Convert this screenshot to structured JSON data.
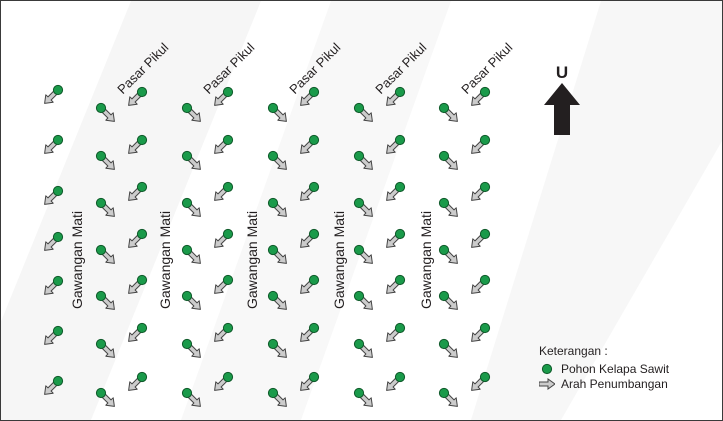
{
  "paths": {
    "pasar_pikul": [
      "Pasar Pikul",
      "Pasar Pikul",
      "Pasar Pikul",
      "Pasar Pikul",
      "Pasar Pikul"
    ],
    "gawangan_mati": [
      "Gawangan Mati",
      "Gawangan Mati",
      "Gawangan Mati",
      "Gawangan Mati",
      "Gawangan Mati"
    ]
  },
  "compass": {
    "label": "U"
  },
  "legend": {
    "title": "Keterangan :",
    "tree_label": "Pohon Kelapa Sawit",
    "arrow_label": "Arah Penumbangan"
  },
  "colors": {
    "tree": "#1a9a4a",
    "tree_outline": "#0f5a2a",
    "arrow_fill": "#cccccc",
    "arrow_outline": "#444444",
    "text": "#231f20"
  },
  "icons": {
    "tree": "green-circle",
    "felling_direction": "outlined-arrow",
    "north": "up-arrow"
  }
}
